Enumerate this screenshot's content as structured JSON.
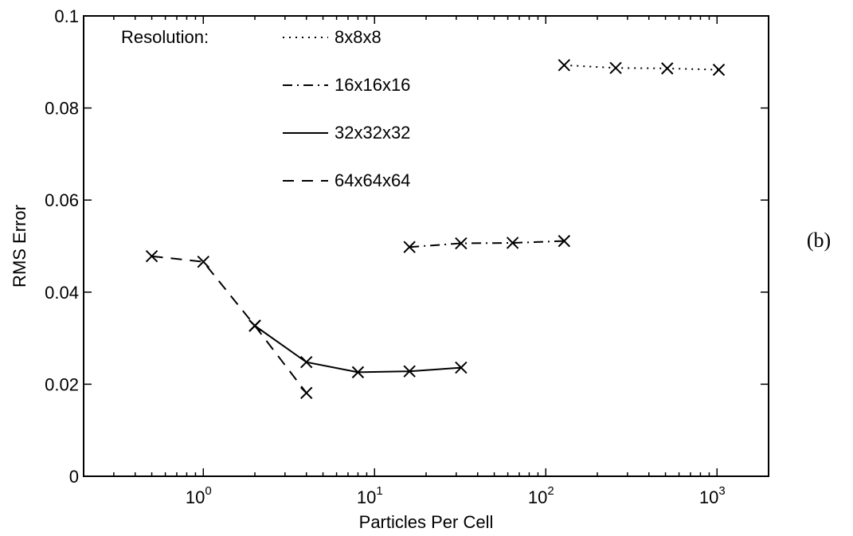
{
  "chart_data": {
    "type": "line",
    "xlabel": "Particles Per Cell",
    "ylabel": "RMS Error",
    "x_scale": "log",
    "xlim": [
      0.2,
      2000
    ],
    "ylim": [
      0,
      0.1
    ],
    "x_ticks": [
      {
        "value": 1,
        "base": "10",
        "exp": "0"
      },
      {
        "value": 10,
        "base": "10",
        "exp": "1"
      },
      {
        "value": 100,
        "base": "10",
        "exp": "2"
      },
      {
        "value": 1000,
        "base": "10",
        "exp": "3"
      }
    ],
    "y_ticks": [
      {
        "value": 0,
        "label": "0"
      },
      {
        "value": 0.02,
        "label": "0.02"
      },
      {
        "value": 0.04,
        "label": "0.04"
      },
      {
        "value": 0.06,
        "label": "0.06"
      },
      {
        "value": 0.08,
        "label": "0.08"
      },
      {
        "value": 0.1,
        "label": "0.1"
      }
    ],
    "grid": false,
    "legend": {
      "title": "Resolution:",
      "placement": "top-left"
    },
    "panel_label": "(b)",
    "series": [
      {
        "name": "8x8x8",
        "line_style": "dotted",
        "x": [
          128,
          256,
          512,
          1024
        ],
        "y": [
          0.0893,
          0.0887,
          0.0886,
          0.0883
        ]
      },
      {
        "name": "16x16x16",
        "line_style": "dashdot",
        "x": [
          16,
          32,
          64,
          128
        ],
        "y": [
          0.0498,
          0.0506,
          0.0507,
          0.0511
        ]
      },
      {
        "name": "32x32x32",
        "line_style": "solid",
        "x": [
          2,
          4,
          8,
          16,
          32
        ],
        "y": [
          0.0327,
          0.0248,
          0.0226,
          0.0228,
          0.0236
        ]
      },
      {
        "name": "64x64x64",
        "line_style": "dashed",
        "x": [
          0.5,
          1,
          2,
          4
        ],
        "y": [
          0.0478,
          0.0466,
          0.0327,
          0.0181
        ]
      }
    ]
  }
}
